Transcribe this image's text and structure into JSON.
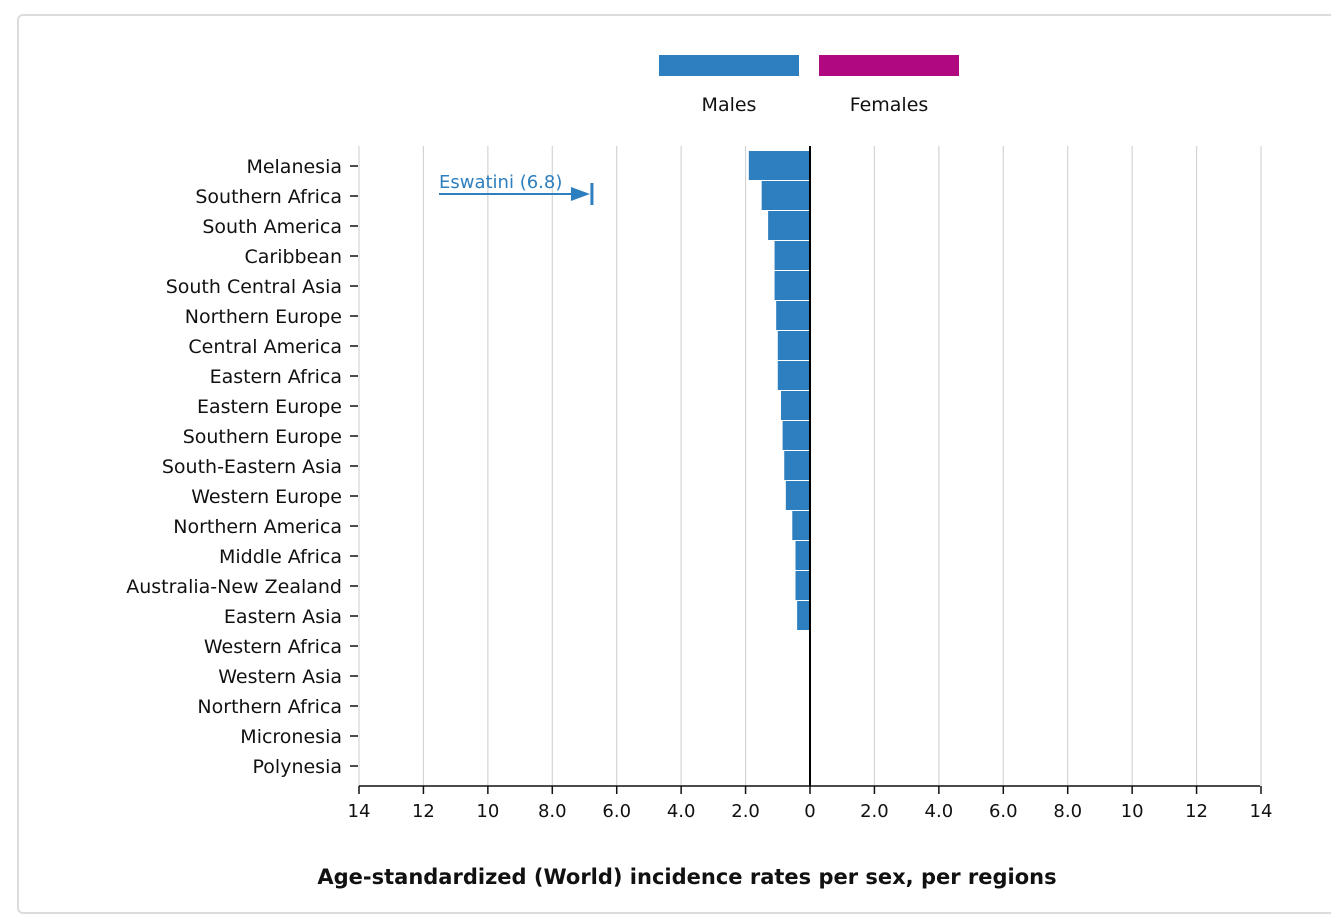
{
  "chart_data": {
    "type": "bar",
    "title": "Age-standardized (World) incidence rates per sex, per regions",
    "orientation": "horizontal-population-pyramid",
    "categories": [
      "Melanesia",
      "Southern Africa",
      "South America",
      "Caribbean",
      "South Central Asia",
      "Northern Europe",
      "Central America",
      "Eastern Africa",
      "Eastern Europe",
      "Southern Europe",
      "South-Eastern Asia",
      "Western Europe",
      "Northern America",
      "Middle Africa",
      "Australia-New Zealand",
      "Eastern Asia",
      "Western Africa",
      "Western Asia",
      "Northern Africa",
      "Micronesia",
      "Polynesia"
    ],
    "series": [
      {
        "name": "Males",
        "color": "#2e7fbf",
        "values": [
          1.9,
          1.5,
          1.3,
          1.1,
          1.1,
          1.05,
          1.0,
          1.0,
          0.9,
          0.85,
          0.8,
          0.75,
          0.55,
          0.45,
          0.45,
          0.4,
          0,
          0,
          0,
          0,
          0
        ]
      },
      {
        "name": "Females",
        "color": "#b0087f",
        "values": [
          0,
          0,
          0,
          0,
          0,
          0,
          0,
          0,
          0,
          0,
          0,
          0,
          0,
          0,
          0,
          0,
          0,
          0,
          0,
          0,
          0
        ]
      }
    ],
    "x_ticks_left": [
      "14",
      "12",
      "10",
      "8.0",
      "6.0",
      "4.0",
      "2.0",
      "0"
    ],
    "x_ticks_right": [
      "2.0",
      "4.0",
      "6.0",
      "8.0",
      "10",
      "12",
      "14"
    ],
    "xlim": [
      -14,
      14
    ],
    "grid": true,
    "legend_position": "top-center",
    "annotation": {
      "text": "Eswatini (6.8)",
      "value": 6.8,
      "category": "Southern Africa",
      "series": "Males",
      "color": "#2e7fbf"
    }
  }
}
